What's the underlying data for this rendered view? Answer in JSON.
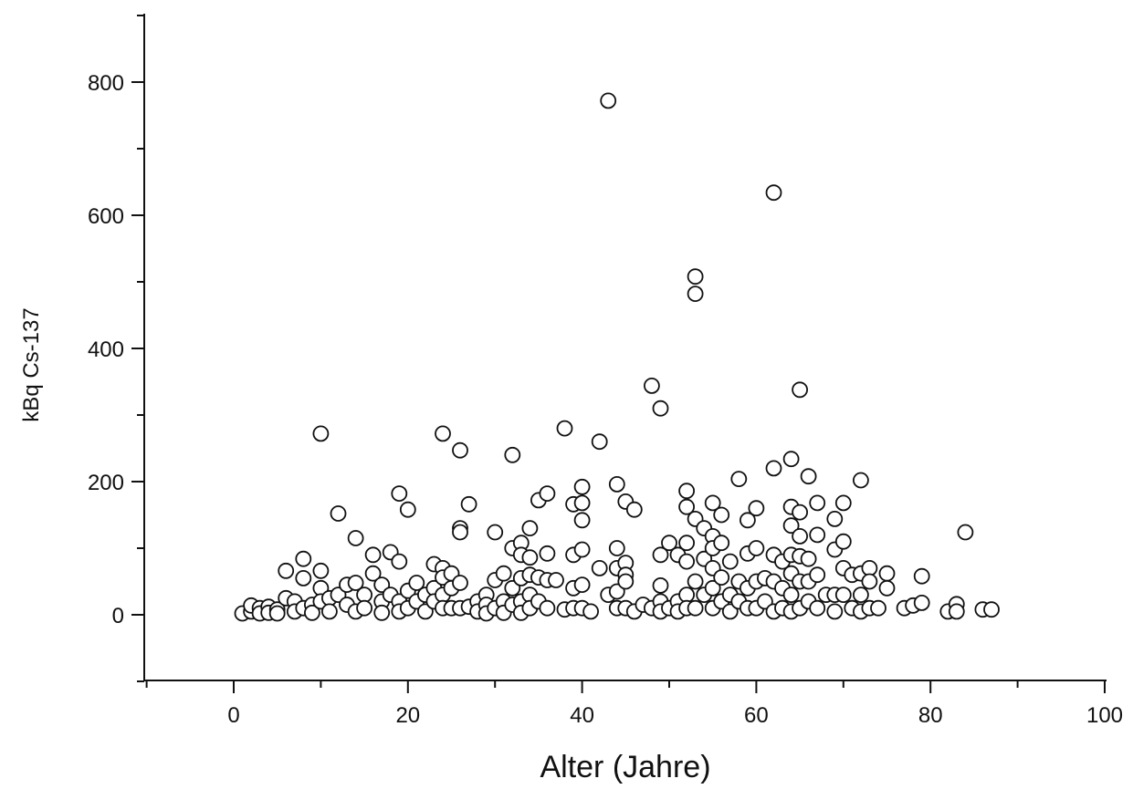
{
  "chart_data": {
    "type": "scatter",
    "xlabel": "Alter (Jahre)",
    "ylabel": "kBq Cs-137",
    "xlim": [
      -10,
      100
    ],
    "ylim": [
      -100,
      900
    ],
    "xticks": [
      0,
      20,
      40,
      60,
      80,
      100
    ],
    "yticks": [
      0,
      200,
      400,
      600,
      800
    ],
    "xtick_labels": [
      "0",
      "20",
      "40",
      "60",
      "80",
      "100"
    ],
    "ytick_labels": [
      "0",
      "200",
      "400",
      "600",
      "800"
    ],
    "grid": false,
    "marker": "open-circle",
    "colors": {
      "marker_edge": "#111111",
      "marker_fill": "#ffffff",
      "axis": "#111111"
    },
    "points": [
      [
        1,
        2
      ],
      [
        2,
        5
      ],
      [
        2,
        14
      ],
      [
        3,
        10
      ],
      [
        3,
        2
      ],
      [
        4,
        12
      ],
      [
        4,
        3
      ],
      [
        5,
        8
      ],
      [
        5,
        2
      ],
      [
        6,
        25
      ],
      [
        6,
        66
      ],
      [
        7,
        20
      ],
      [
        7,
        5
      ],
      [
        8,
        84
      ],
      [
        8,
        55
      ],
      [
        8,
        10
      ],
      [
        9,
        15
      ],
      [
        9,
        3
      ],
      [
        10,
        272
      ],
      [
        10,
        66
      ],
      [
        10,
        40
      ],
      [
        10,
        20
      ],
      [
        11,
        25
      ],
      [
        11,
        5
      ],
      [
        12,
        152
      ],
      [
        12,
        30
      ],
      [
        13,
        45
      ],
      [
        13,
        15
      ],
      [
        14,
        115
      ],
      [
        14,
        48
      ],
      [
        14,
        5
      ],
      [
        15,
        30
      ],
      [
        15,
        10
      ],
      [
        16,
        90
      ],
      [
        16,
        62
      ],
      [
        17,
        45
      ],
      [
        17,
        20
      ],
      [
        17,
        3
      ],
      [
        18,
        94
      ],
      [
        18,
        30
      ],
      [
        19,
        182
      ],
      [
        19,
        80
      ],
      [
        19,
        20
      ],
      [
        19,
        5
      ],
      [
        20,
        158
      ],
      [
        20,
        36
      ],
      [
        20,
        10
      ],
      [
        21,
        48
      ],
      [
        21,
        20
      ],
      [
        22,
        30
      ],
      [
        22,
        5
      ],
      [
        23,
        76
      ],
      [
        23,
        40
      ],
      [
        23,
        20
      ],
      [
        24,
        272
      ],
      [
        24,
        70
      ],
      [
        24,
        56
      ],
      [
        24,
        30
      ],
      [
        24,
        10
      ],
      [
        25,
        62
      ],
      [
        25,
        40
      ],
      [
        25,
        10
      ],
      [
        26,
        247
      ],
      [
        26,
        130
      ],
      [
        26,
        124
      ],
      [
        26,
        48
      ],
      [
        26,
        10
      ],
      [
        27,
        166
      ],
      [
        27,
        12
      ],
      [
        28,
        20
      ],
      [
        28,
        5
      ],
      [
        29,
        30
      ],
      [
        29,
        15
      ],
      [
        29,
        2
      ],
      [
        30,
        124
      ],
      [
        30,
        52
      ],
      [
        30,
        10
      ],
      [
        31,
        62
      ],
      [
        31,
        20
      ],
      [
        31,
        3
      ],
      [
        32,
        240
      ],
      [
        32,
        100
      ],
      [
        32,
        40
      ],
      [
        32,
        15
      ],
      [
        33,
        108
      ],
      [
        33,
        90
      ],
      [
        33,
        55
      ],
      [
        33,
        20
      ],
      [
        33,
        3
      ],
      [
        34,
        130
      ],
      [
        34,
        86
      ],
      [
        34,
        60
      ],
      [
        34,
        30
      ],
      [
        34,
        10
      ],
      [
        35,
        172
      ],
      [
        35,
        56
      ],
      [
        35,
        20
      ],
      [
        36,
        182
      ],
      [
        36,
        92
      ],
      [
        36,
        52
      ],
      [
        36,
        10
      ],
      [
        37,
        52
      ],
      [
        38,
        280
      ],
      [
        38,
        8
      ],
      [
        39,
        166
      ],
      [
        39,
        90
      ],
      [
        39,
        40
      ],
      [
        39,
        10
      ],
      [
        40,
        192
      ],
      [
        40,
        168
      ],
      [
        40,
        142
      ],
      [
        40,
        98
      ],
      [
        40,
        45
      ],
      [
        40,
        10
      ],
      [
        41,
        5
      ],
      [
        42,
        260
      ],
      [
        42,
        70
      ],
      [
        43,
        30
      ],
      [
        43,
        772
      ],
      [
        44,
        196
      ],
      [
        44,
        100
      ],
      [
        44,
        70
      ],
      [
        44,
        35
      ],
      [
        44,
        10
      ],
      [
        45,
        170
      ],
      [
        45,
        78
      ],
      [
        45,
        60
      ],
      [
        45,
        50
      ],
      [
        45,
        10
      ],
      [
        46,
        158
      ],
      [
        46,
        5
      ],
      [
        47,
        15
      ],
      [
        48,
        344
      ],
      [
        48,
        10
      ],
      [
        49,
        310
      ],
      [
        49,
        90
      ],
      [
        49,
        44
      ],
      [
        49,
        20
      ],
      [
        49,
        5
      ],
      [
        50,
        108
      ],
      [
        50,
        10
      ],
      [
        51,
        90
      ],
      [
        51,
        20
      ],
      [
        51,
        5
      ],
      [
        52,
        186
      ],
      [
        52,
        162
      ],
      [
        52,
        108
      ],
      [
        52,
        80
      ],
      [
        52,
        30
      ],
      [
        52,
        10
      ],
      [
        53,
        508
      ],
      [
        53,
        482
      ],
      [
        53,
        144
      ],
      [
        53,
        50
      ],
      [
        53,
        10
      ],
      [
        54,
        130
      ],
      [
        54,
        84
      ],
      [
        54,
        30
      ],
      [
        55,
        168
      ],
      [
        55,
        118
      ],
      [
        55,
        100
      ],
      [
        55,
        70
      ],
      [
        55,
        40
      ],
      [
        55,
        10
      ],
      [
        56,
        150
      ],
      [
        56,
        108
      ],
      [
        56,
        56
      ],
      [
        56,
        20
      ],
      [
        57,
        80
      ],
      [
        57,
        30
      ],
      [
        57,
        5
      ],
      [
        58,
        204
      ],
      [
        58,
        50
      ],
      [
        58,
        20
      ],
      [
        59,
        142
      ],
      [
        59,
        92
      ],
      [
        59,
        40
      ],
      [
        59,
        10
      ],
      [
        60,
        160
      ],
      [
        60,
        100
      ],
      [
        60,
        50
      ],
      [
        60,
        10
      ],
      [
        61,
        55
      ],
      [
        61,
        20
      ],
      [
        62,
        634
      ],
      [
        62,
        220
      ],
      [
        62,
        90
      ],
      [
        62,
        50
      ],
      [
        62,
        5
      ],
      [
        63,
        80
      ],
      [
        63,
        40
      ],
      [
        63,
        10
      ],
      [
        64,
        234
      ],
      [
        64,
        162
      ],
      [
        64,
        134
      ],
      [
        64,
        90
      ],
      [
        64,
        62
      ],
      [
        64,
        30
      ],
      [
        64,
        5
      ],
      [
        65,
        338
      ],
      [
        65,
        154
      ],
      [
        65,
        118
      ],
      [
        65,
        88
      ],
      [
        65,
        50
      ],
      [
        65,
        10
      ],
      [
        66,
        208
      ],
      [
        66,
        84
      ],
      [
        66,
        50
      ],
      [
        66,
        20
      ],
      [
        67,
        168
      ],
      [
        67,
        120
      ],
      [
        67,
        60
      ],
      [
        67,
        10
      ],
      [
        68,
        30
      ],
      [
        69,
        144
      ],
      [
        69,
        98
      ],
      [
        69,
        30
      ],
      [
        69,
        5
      ],
      [
        70,
        168
      ],
      [
        70,
        110
      ],
      [
        70,
        70
      ],
      [
        70,
        30
      ],
      [
        71,
        60
      ],
      [
        71,
        10
      ],
      [
        72,
        202
      ],
      [
        72,
        62
      ],
      [
        72,
        30
      ],
      [
        72,
        5
      ],
      [
        73,
        70
      ],
      [
        73,
        50
      ],
      [
        73,
        10
      ],
      [
        74,
        10
      ],
      [
        75,
        62
      ],
      [
        75,
        40
      ],
      [
        77,
        10
      ],
      [
        78,
        14
      ],
      [
        79,
        58
      ],
      [
        79,
        18
      ],
      [
        82,
        5
      ],
      [
        83,
        16
      ],
      [
        83,
        5
      ],
      [
        84,
        124
      ],
      [
        86,
        8
      ],
      [
        87,
        8
      ]
    ]
  }
}
